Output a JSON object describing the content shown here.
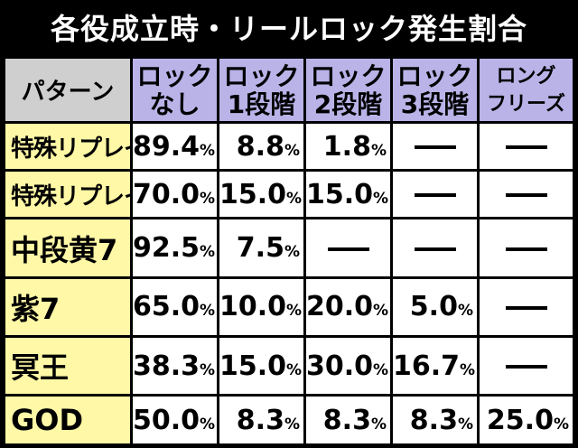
{
  "title": "各役成立時・リールロック発生割合",
  "table": {
    "corner_label": "パターン",
    "columns": [
      {
        "line1": "ロック",
        "line2": "なし"
      },
      {
        "line1": "ロック",
        "line2": "1段階"
      },
      {
        "line1": "ロック",
        "line2": "2段階"
      },
      {
        "line1": "ロック",
        "line2": "3段階"
      },
      {
        "line1": "ロング",
        "line2": "フリーズ"
      }
    ],
    "percent_sign": "%",
    "rows": [
      {
        "label": "特殊リプレイA",
        "values": [
          "89.4",
          "8.8",
          "1.8",
          "—",
          "—"
        ]
      },
      {
        "label": "特殊リプレイB",
        "values": [
          "70.0",
          "15.0",
          "15.0",
          "—",
          "—"
        ]
      },
      {
        "label": "中段黄7",
        "values": [
          "92.5",
          "7.5",
          "—",
          "—",
          "—"
        ]
      },
      {
        "label": "紫7",
        "values": [
          "65.0",
          "10.0",
          "20.0",
          "5.0",
          "—"
        ]
      },
      {
        "label": "冥王",
        "values": [
          "38.3",
          "15.0",
          "30.0",
          "16.7",
          "—"
        ]
      },
      {
        "label": "GOD",
        "values": [
          "50.0",
          "8.3",
          "8.3",
          "8.3",
          "25.0"
        ]
      }
    ]
  }
}
